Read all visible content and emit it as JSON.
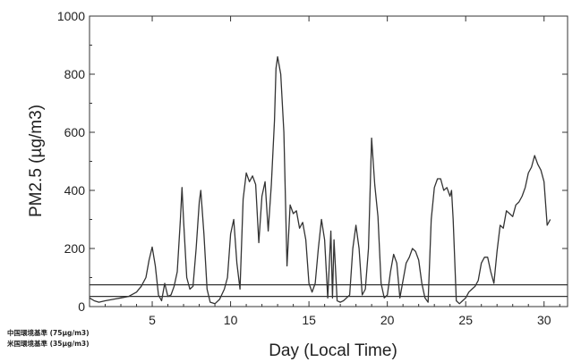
{
  "chart_data": {
    "type": "line",
    "ylabel": "PM2.5 (µg/m3)",
    "xlabel": "Day (Local Time)",
    "xlim": [
      1,
      31.5
    ],
    "ylim": [
      0,
      1000
    ],
    "x_ticks": [
      5,
      10,
      15,
      20,
      25,
      30
    ],
    "x_tick_labels": [
      "5",
      "10",
      "15",
      "20",
      "25",
      "30"
    ],
    "y_ticks": [
      0,
      200,
      400,
      600,
      800,
      1000
    ],
    "y_tick_labels": [
      "0",
      "200",
      "400",
      "600",
      "800",
      "1000"
    ],
    "grid": false,
    "reference_lines": [
      {
        "label": "中国環境基準 (75µg/m3)",
        "value": 75
      },
      {
        "label": "米国環境基準 (35µg/m3)",
        "value": 35
      }
    ],
    "series": [
      {
        "color": "#333333",
        "x": [
          1.0,
          1.3,
          1.6,
          2.0,
          2.5,
          3.0,
          3.5,
          4.0,
          4.3,
          4.6,
          4.8,
          5.0,
          5.2,
          5.4,
          5.6,
          5.8,
          6.0,
          6.2,
          6.4,
          6.6,
          6.8,
          6.9,
          7.0,
          7.2,
          7.4,
          7.6,
          7.8,
          8.0,
          8.1,
          8.3,
          8.5,
          8.7,
          9.0,
          9.3,
          9.6,
          9.8,
          10.0,
          10.2,
          10.4,
          10.6,
          10.8,
          11.0,
          11.2,
          11.4,
          11.6,
          11.8,
          12.0,
          12.2,
          12.4,
          12.6,
          12.8,
          12.9,
          13.0,
          13.2,
          13.4,
          13.6,
          13.8,
          14.0,
          14.2,
          14.4,
          14.6,
          14.8,
          15.0,
          15.2,
          15.4,
          15.6,
          15.8,
          16.0,
          16.2,
          16.4,
          16.5,
          16.6,
          16.8,
          17.0,
          17.2,
          17.4,
          17.6,
          17.8,
          18.0,
          18.2,
          18.4,
          18.6,
          18.8,
          19.0,
          19.2,
          19.4,
          19.6,
          19.8,
          20.0,
          20.2,
          20.4,
          20.6,
          20.8,
          21.0,
          21.2,
          21.4,
          21.6,
          21.8,
          22.0,
          22.2,
          22.4,
          22.6,
          22.8,
          23.0,
          23.2,
          23.4,
          23.6,
          23.8,
          24.0,
          24.1,
          24.2,
          24.4,
          24.6,
          24.8,
          25.0,
          25.2,
          25.4,
          25.6,
          25.8,
          26.0,
          26.2,
          26.4,
          26.6,
          26.8,
          27.0,
          27.2,
          27.4,
          27.6,
          27.8,
          28.0,
          28.2,
          28.4,
          28.6,
          28.8,
          29.0,
          29.2,
          29.4,
          29.6,
          29.8,
          30.0,
          30.2,
          30.4
        ],
        "y": [
          30,
          20,
          15,
          20,
          25,
          30,
          35,
          50,
          70,
          100,
          160,
          205,
          140,
          40,
          20,
          80,
          35,
          40,
          70,
          120,
          300,
          410,
          300,
          100,
          60,
          70,
          200,
          360,
          400,
          250,
          60,
          15,
          10,
          25,
          60,
          100,
          250,
          300,
          150,
          60,
          370,
          460,
          430,
          450,
          420,
          220,
          380,
          430,
          260,
          420,
          640,
          820,
          860,
          800,
          600,
          140,
          350,
          320,
          330,
          270,
          290,
          230,
          80,
          50,
          80,
          200,
          300,
          230,
          30,
          260,
          30,
          230,
          20,
          15,
          20,
          30,
          40,
          200,
          280,
          200,
          40,
          60,
          200,
          580,
          420,
          310,
          80,
          30,
          40,
          120,
          180,
          150,
          30,
          90,
          150,
          170,
          200,
          190,
          160,
          80,
          30,
          15,
          300,
          410,
          440,
          440,
          400,
          410,
          380,
          400,
          300,
          20,
          10,
          20,
          30,
          50,
          60,
          70,
          90,
          150,
          170,
          170,
          120,
          80,
          190,
          280,
          270,
          330,
          320,
          310,
          350,
          360,
          380,
          410,
          460,
          480,
          520,
          490,
          470,
          430,
          280,
          300
        ]
      }
    ]
  }
}
